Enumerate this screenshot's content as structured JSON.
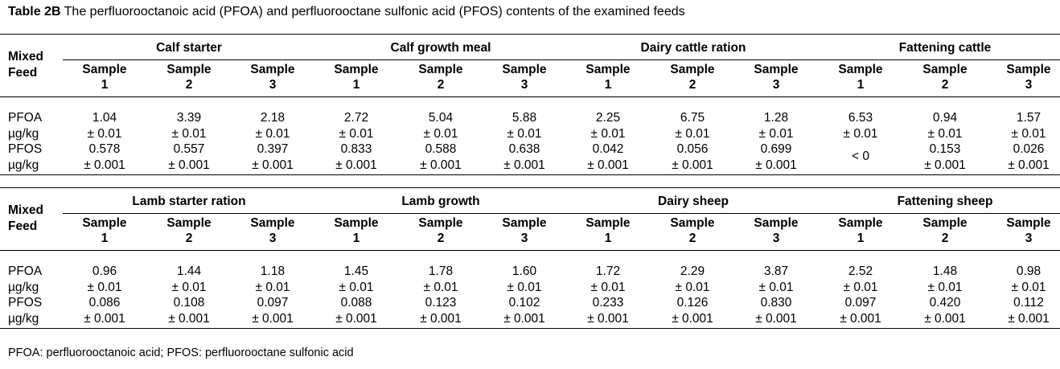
{
  "caption": {
    "label": "Table 2B",
    "text": "The perfluorooctanoic acid (PFOA) and perfluorooctane sulfonic acid (PFOS) contents of the examined feeds"
  },
  "stub_header_line1": "Mixed",
  "stub_header_line2": "Feed",
  "row_labels": {
    "pfoa": "PFOA",
    "pfos": "PFOS",
    "unit": "µg/kg"
  },
  "sample_label": "Sample",
  "sample_numbers": [
    "1",
    "2",
    "3"
  ],
  "blocks": [
    {
      "groups": [
        "Calf starter",
        "Calf growth meal",
        "Dairy cattle ration",
        "Fattening cattle"
      ],
      "pfoa": [
        [
          "1.04",
          "± 0.01"
        ],
        [
          "3.39",
          "± 0.01"
        ],
        [
          "2.18",
          "± 0.01"
        ],
        [
          "2.72",
          "± 0.01"
        ],
        [
          "5.04",
          "± 0.01"
        ],
        [
          "5.88",
          "± 0.01"
        ],
        [
          "2.25",
          "± 0.01"
        ],
        [
          "6.75",
          "± 0.01"
        ],
        [
          "1.28",
          "± 0.01"
        ],
        [
          "6.53",
          "± 0.01"
        ],
        [
          "0.94",
          "± 0.01"
        ],
        [
          "1.57",
          "± 0.01"
        ]
      ],
      "pfos": [
        [
          "0.578",
          "± 0.001"
        ],
        [
          "0.557",
          "± 0.001"
        ],
        [
          "0.397",
          "± 0.001"
        ],
        [
          "0.833",
          "± 0.001"
        ],
        [
          "0.588",
          "± 0.001"
        ],
        [
          "0.638",
          "± 0.001"
        ],
        [
          "0.042",
          "± 0.001"
        ],
        [
          "0.056",
          "± 0.001"
        ],
        [
          "0.699",
          "± 0.001"
        ],
        [
          "< 0",
          ""
        ],
        [
          "0.153",
          "± 0.001"
        ],
        [
          "0.026",
          "± 0.001"
        ]
      ]
    },
    {
      "groups": [
        "Lamb starter ration",
        "Lamb growth",
        "Dairy sheep",
        "Fattening sheep"
      ],
      "pfoa": [
        [
          "0.96",
          "± 0.01"
        ],
        [
          "1.44",
          "± 0.01"
        ],
        [
          "1.18",
          "± 0.01"
        ],
        [
          "1.45",
          "± 0.01"
        ],
        [
          "1.78",
          "± 0.01"
        ],
        [
          "1.60",
          "± 0.01"
        ],
        [
          "1.72",
          "± 0.01"
        ],
        [
          "2.29",
          "± 0.01"
        ],
        [
          "3.87",
          "± 0.01"
        ],
        [
          "2.52",
          "± 0.01"
        ],
        [
          "1.48",
          "± 0.01"
        ],
        [
          "0.98",
          "± 0.01"
        ]
      ],
      "pfos": [
        [
          "0.086",
          "± 0.001"
        ],
        [
          "0.108",
          "± 0.001"
        ],
        [
          "0.097",
          "± 0.001"
        ],
        [
          "0.088",
          "± 0.001"
        ],
        [
          "0.123",
          "± 0.001"
        ],
        [
          "0.102",
          "± 0.001"
        ],
        [
          "0.233",
          "± 0.001"
        ],
        [
          "0.126",
          "± 0.001"
        ],
        [
          "0.830",
          "± 0.001"
        ],
        [
          "0.097",
          "± 0.001"
        ],
        [
          "0.420",
          "± 0.001"
        ],
        [
          "0.112",
          "± 0.001"
        ]
      ]
    }
  ],
  "footnote": "PFOA: perfluorooctanoic acid; PFOS: perfluorooctane sulfonic acid"
}
